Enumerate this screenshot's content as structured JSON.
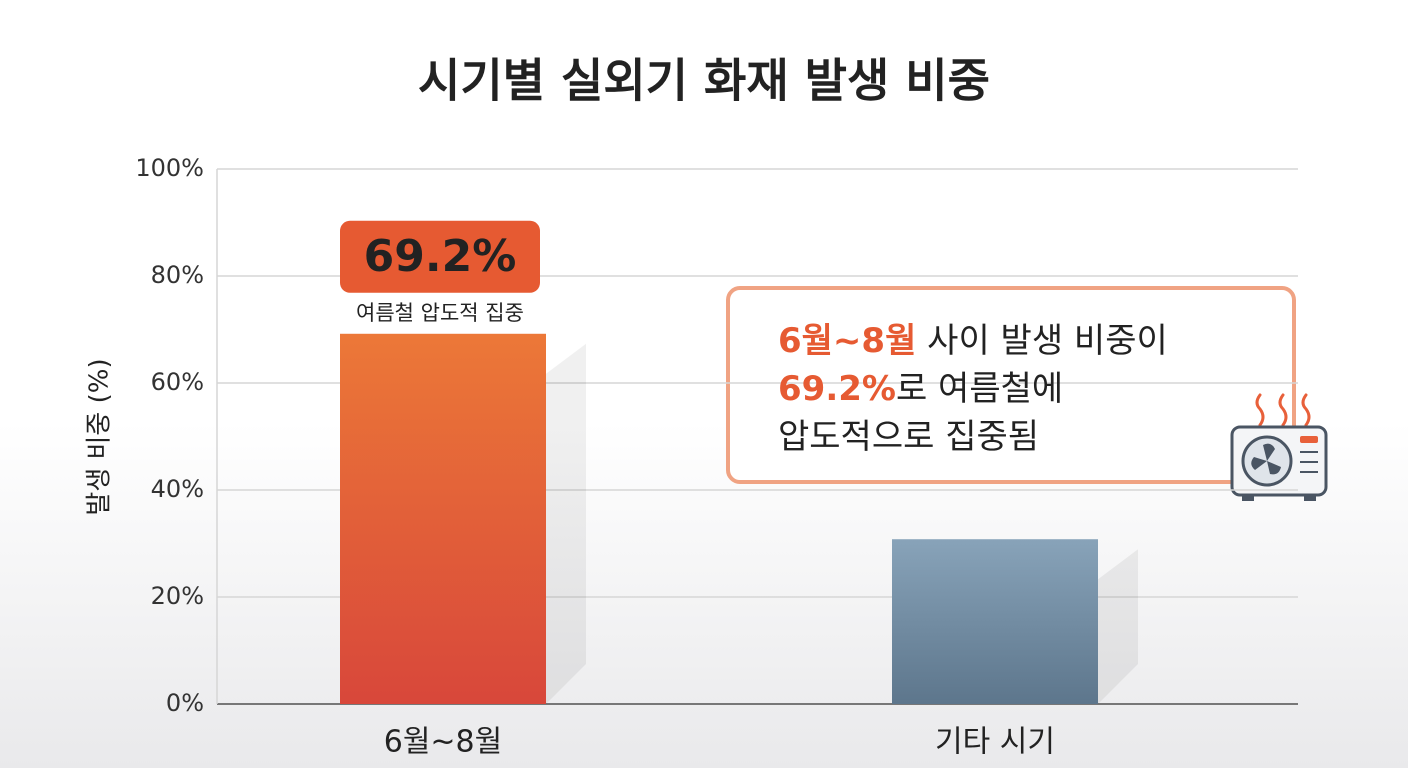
{
  "chart_data": {
    "type": "bar",
    "title": "시기별 실외기 화재 발생 비중",
    "y_label": "발생 비중 (%)",
    "categories": [
      "6월~8월",
      "기타 시기"
    ],
    "values": [
      69.2,
      30.8
    ],
    "value_labels": [
      "69.2%",
      null
    ],
    "colors": [
      [
        "#ec7838",
        "#d8473a"
      ],
      [
        "#88a3b9",
        "#5d768c"
      ]
    ],
    "label_color": "#e65a32",
    "bar_note": "여름철 압도적 집중",
    "ylim": [
      0,
      100
    ],
    "yticks": [
      {
        "value": 0,
        "label": "0%"
      },
      {
        "value": 20,
        "label": "20%"
      },
      {
        "value": 40,
        "label": "40%"
      },
      {
        "value": 60,
        "label": "60%"
      },
      {
        "value": 80,
        "label": "80%"
      },
      {
        "value": 100,
        "label": "100%"
      }
    ],
    "grid": true,
    "callout": [
      [
        {
          "text": "6월~8월",
          "emphasis": true
        },
        {
          "text": " 사이 발생 비중이"
        }
      ],
      [
        {
          "text": "69.2%",
          "emphasis": true
        },
        {
          "text": "로 여름철에"
        }
      ],
      [
        {
          "text": "압도적으로 집중됨"
        }
      ]
    ]
  }
}
